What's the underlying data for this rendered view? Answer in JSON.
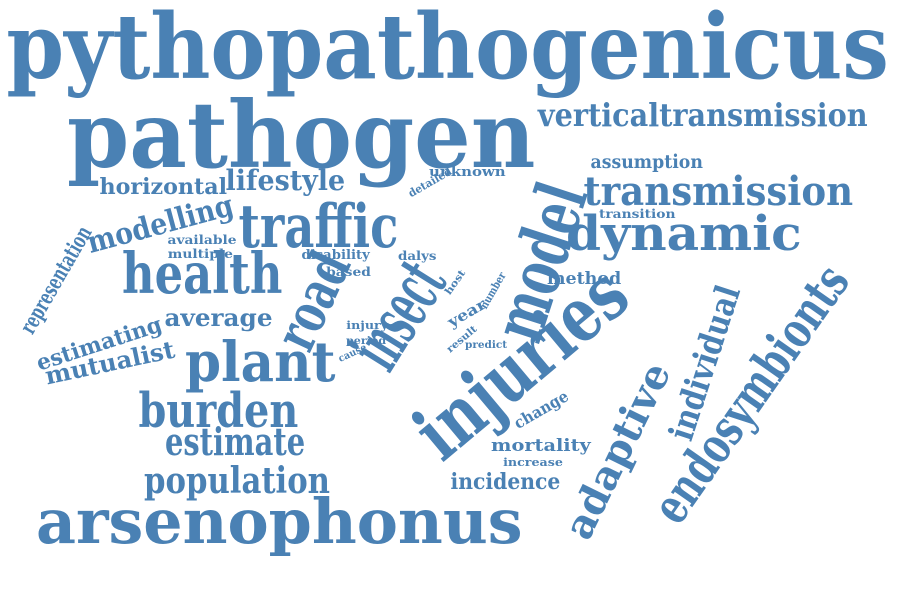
{
  "color": "#4a81b4",
  "words": [
    "pythopathogenicus",
    "pathogen",
    "verticaltransmission",
    "assumption",
    "unknown",
    "horizontal",
    "lifestyle",
    "transmission",
    "detailed",
    "traffic",
    "modelling",
    "transition",
    "dynamic",
    "representation",
    "available",
    "multiple",
    "disability",
    "dalys",
    "health",
    "based",
    "method",
    "road",
    "insect",
    "model",
    "host",
    "number",
    "endosymbionts",
    "estimating",
    "average",
    "injury",
    "year",
    "individual",
    "mutualist",
    "plant",
    "period",
    "cause",
    "result",
    "predict",
    "injuries",
    "adaptive",
    "burden",
    "change",
    "estimate",
    "mortality",
    "increase",
    "population",
    "incidence",
    "arsenophonus"
  ]
}
